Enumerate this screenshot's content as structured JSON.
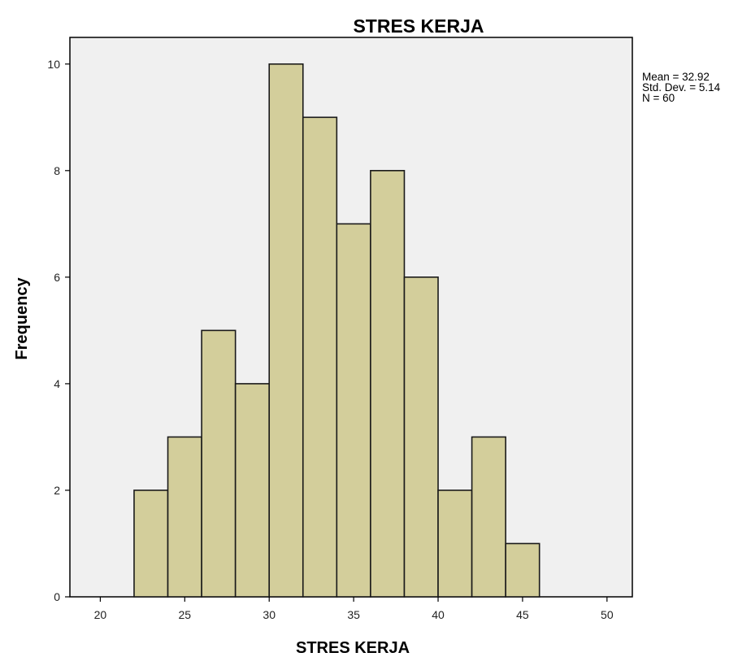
{
  "chart_data": {
    "type": "bar",
    "title": "STRES KERJA",
    "xlabel": "STRES KERJA",
    "ylabel": "Frequency",
    "bins": [
      {
        "x0": 22,
        "x1": 24,
        "count": 2
      },
      {
        "x0": 24,
        "x1": 26,
        "count": 3
      },
      {
        "x0": 26,
        "x1": 28,
        "count": 5
      },
      {
        "x0": 28,
        "x1": 30,
        "count": 4
      },
      {
        "x0": 30,
        "x1": 32,
        "count": 10
      },
      {
        "x0": 32,
        "x1": 34,
        "count": 9
      },
      {
        "x0": 34,
        "x1": 36,
        "count": 7
      },
      {
        "x0": 36,
        "x1": 38,
        "count": 8
      },
      {
        "x0": 38,
        "x1": 40,
        "count": 6
      },
      {
        "x0": 40,
        "x1": 42,
        "count": 2
      },
      {
        "x0": 42,
        "x1": 44,
        "count": 3
      },
      {
        "x0": 44,
        "x1": 46,
        "count": 1
      }
    ],
    "xlim": [
      18.2,
      51.5
    ],
    "ylim": [
      0,
      10.5
    ],
    "xticks": [
      20,
      25,
      30,
      35,
      40,
      45,
      50
    ],
    "yticks": [
      0,
      2,
      4,
      6,
      8,
      10
    ],
    "grid": false,
    "stats": [
      "Mean = 32.92",
      "Std. Dev. = 5.14",
      "N = 60"
    ],
    "colors": {
      "bar_fill": "#d3ce9b",
      "bar_stroke": "#1a1a1a",
      "plot_background": "#f0f0f0",
      "frame": "#000000"
    }
  }
}
